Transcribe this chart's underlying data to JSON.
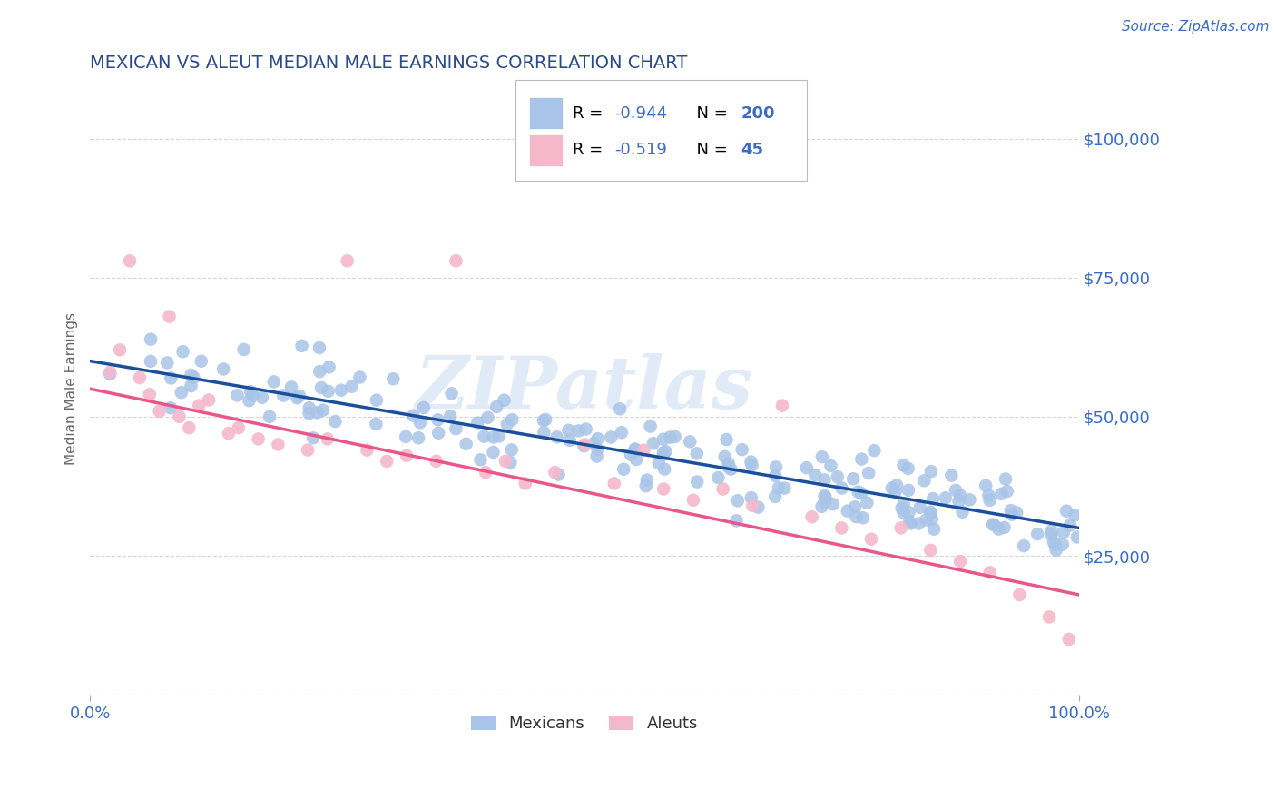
{
  "title": "MEXICAN VS ALEUT MEDIAN MALE EARNINGS CORRELATION CHART",
  "source": "Source: ZipAtlas.com",
  "ylabel": "Median Male Earnings",
  "xlim": [
    0,
    1.0
  ],
  "ylim": [
    0,
    110000
  ],
  "yticks": [
    0,
    25000,
    50000,
    75000,
    100000
  ],
  "ytick_labels": [
    "",
    "$25,000",
    "$50,000",
    "$75,000",
    "$100,000"
  ],
  "xtick_labels": [
    "0.0%",
    "100.0%"
  ],
  "legend_R1": "-0.944",
  "legend_N1": "200",
  "legend_R2": "-0.519",
  "legend_N2": "45",
  "blue_color": "#a8c4e8",
  "pink_color": "#f5b8cb",
  "blue_line_color": "#1a4f9c",
  "pink_line_color": "#e8578a",
  "label_color": "#3a6bc9",
  "title_color": "#2a4a8c",
  "watermark": "ZIPatlas",
  "background_color": "#ffffff",
  "grid_color": "#cccccc",
  "blue_line_x0": 0.0,
  "blue_line_y0": 60000,
  "blue_line_x1": 1.0,
  "blue_line_y1": 30000,
  "pink_line_x0": 0.0,
  "pink_line_y0": 55000,
  "pink_line_x1": 1.0,
  "pink_line_y1": 18000
}
